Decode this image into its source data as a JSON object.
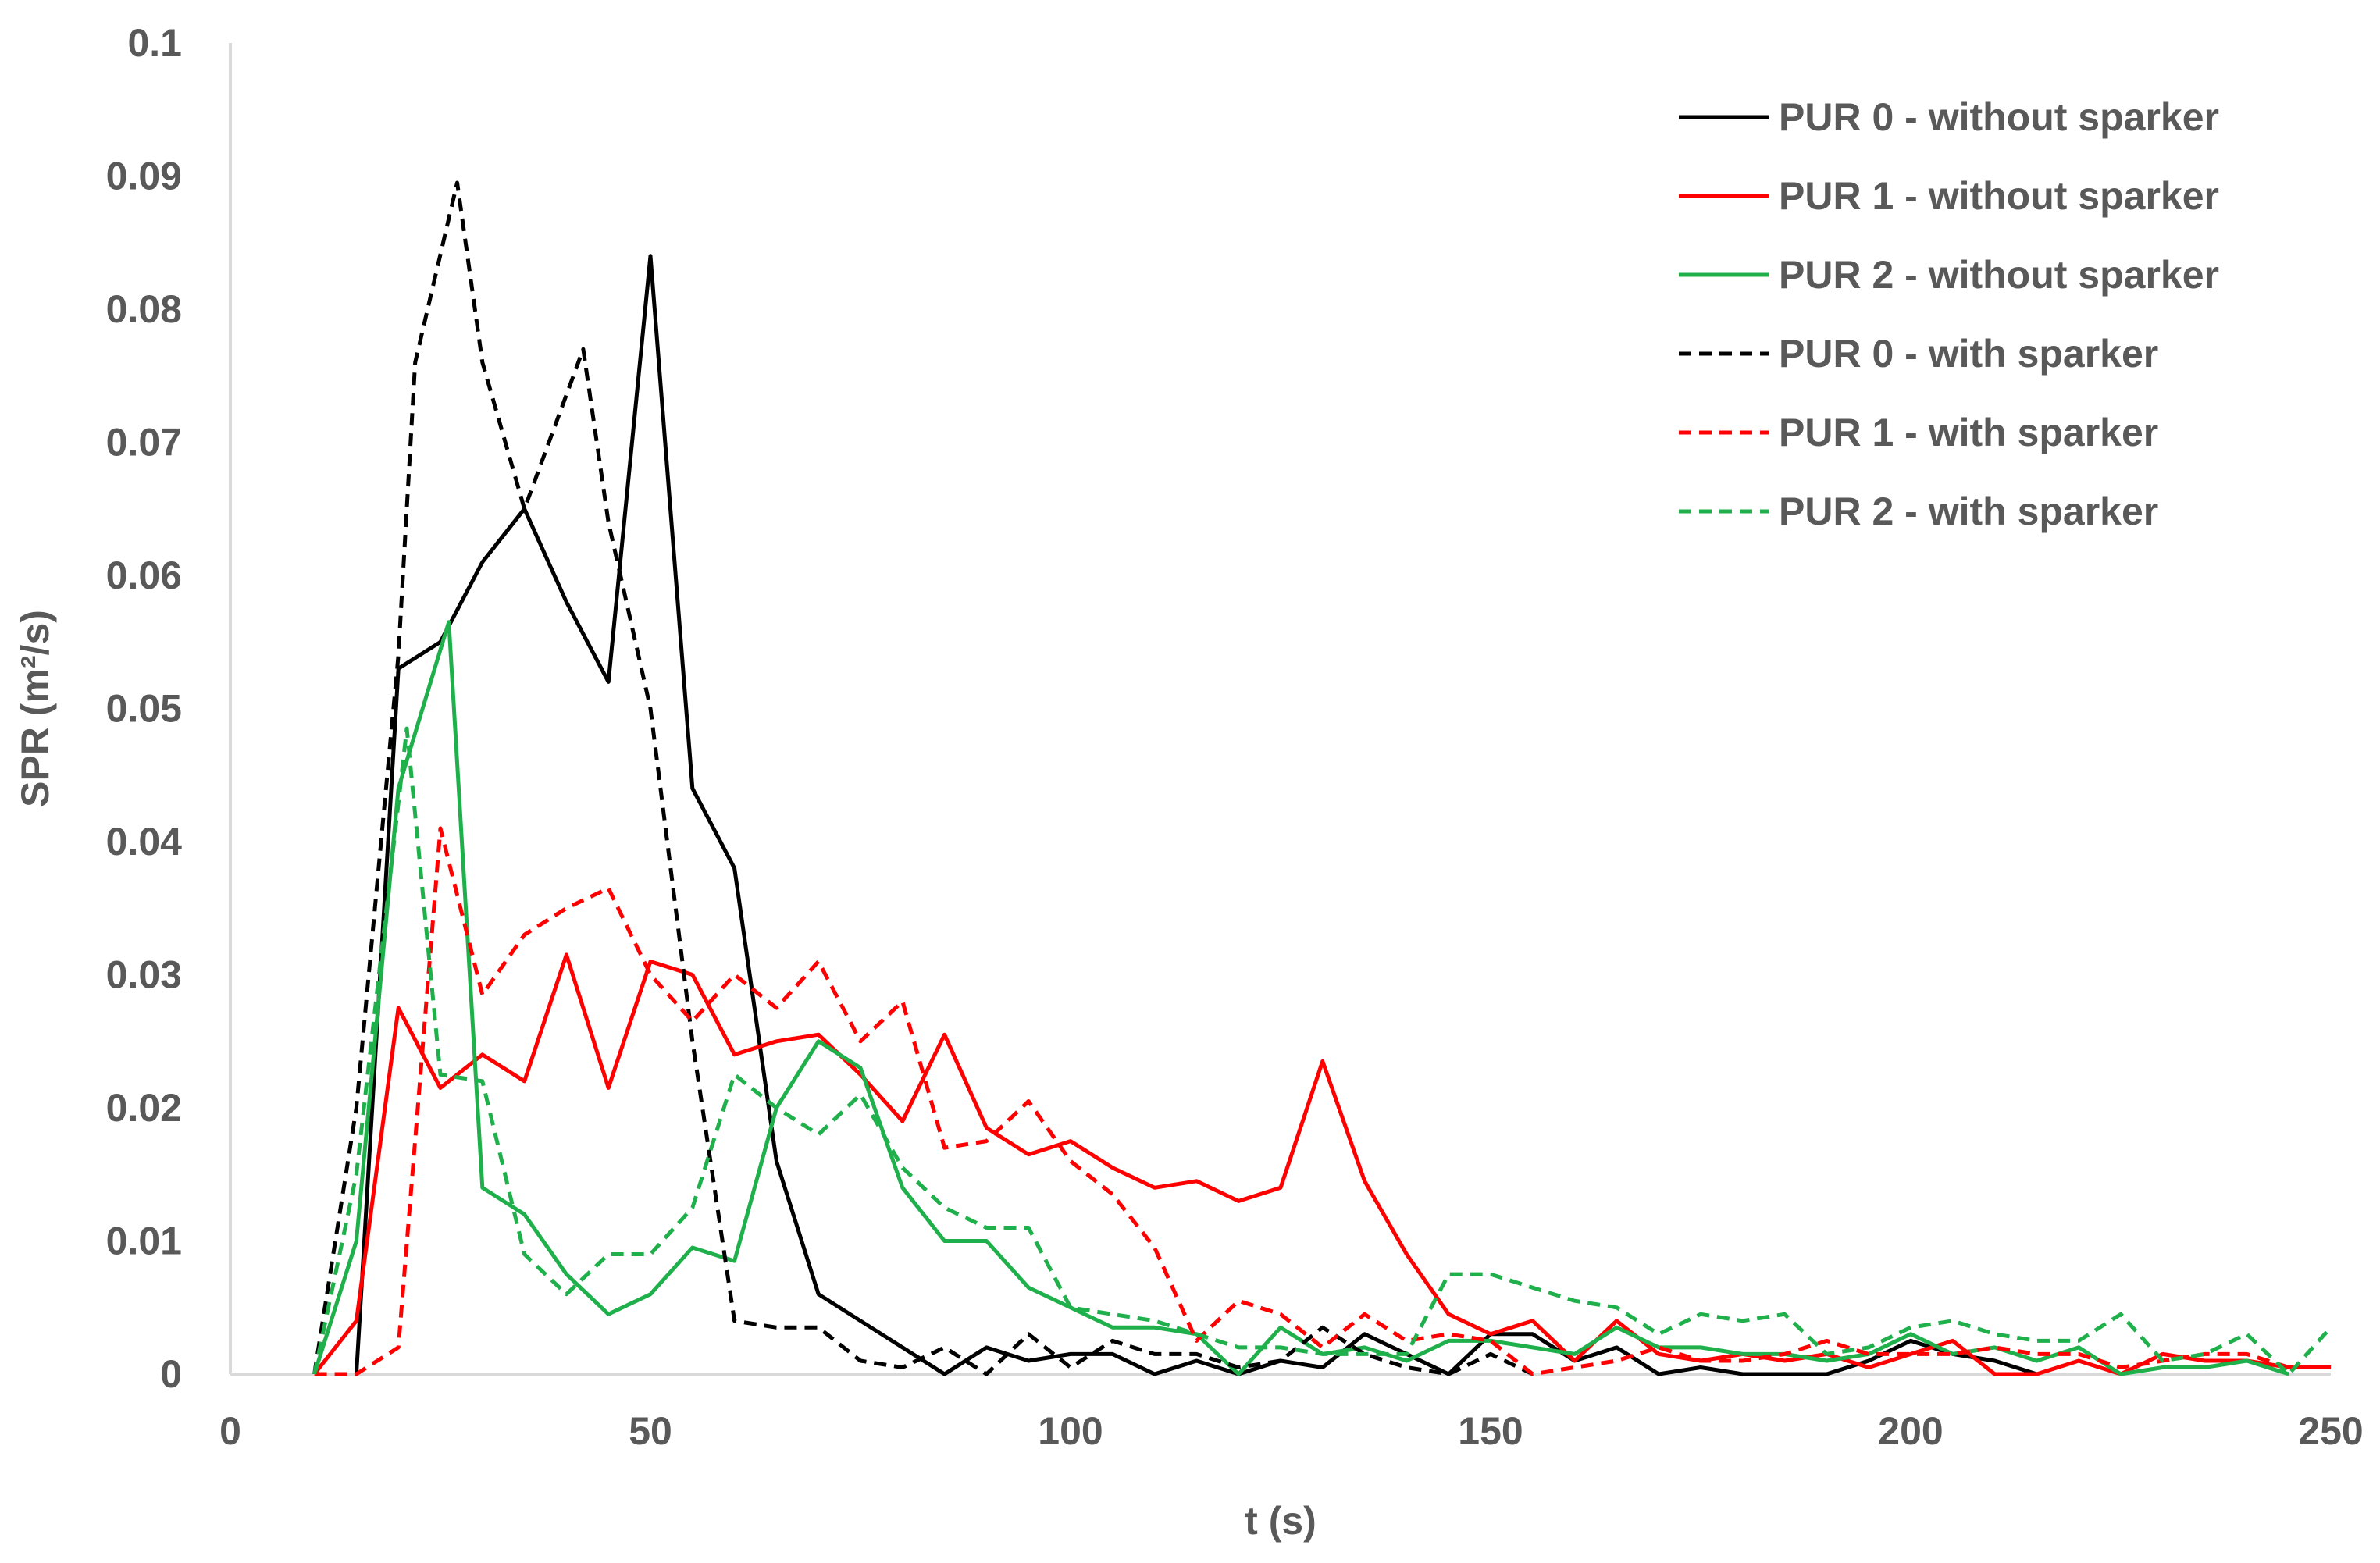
{
  "chart_data": {
    "type": "line",
    "title": "",
    "xlabel": "t (s)",
    "ylabel": "SPR (m²/s)",
    "xlim": [
      0,
      250
    ],
    "ylim": [
      0,
      0.1
    ],
    "x_ticks": [
      "0",
      "50",
      "100",
      "150",
      "200",
      "250"
    ],
    "y_ticks": [
      "0",
      "0.01",
      "0.02",
      "0.03",
      "0.04",
      "0.05",
      "0.06",
      "0.07",
      "0.08",
      "0.09",
      "0.1"
    ],
    "grid": false,
    "legend_position": "top-right",
    "series": [
      {
        "name": "PUR 0 - without sparker",
        "color": "#000000",
        "dash": "solid",
        "points": [
          [
            15,
            0
          ],
          [
            20,
            0.053
          ],
          [
            25,
            0.055
          ],
          [
            30,
            0.061
          ],
          [
            35,
            0.065
          ],
          [
            40,
            0.058
          ],
          [
            45,
            0.052
          ],
          [
            50,
            0.084
          ],
          [
            55,
            0.044
          ],
          [
            60,
            0.038
          ],
          [
            65,
            0.016
          ],
          [
            70,
            0.006
          ],
          [
            75,
            0.004
          ],
          [
            80,
            0.002
          ],
          [
            85,
            0
          ],
          [
            90,
            0.002
          ],
          [
            95,
            0.001
          ],
          [
            100,
            0.0015
          ],
          [
            105,
            0.0015
          ],
          [
            110,
            0
          ],
          [
            115,
            0.001
          ],
          [
            120,
            0
          ],
          [
            125,
            0.001
          ],
          [
            130,
            0.0005
          ],
          [
            135,
            0.003
          ],
          [
            140,
            0.0015
          ],
          [
            145,
            0
          ],
          [
            150,
            0.003
          ],
          [
            155,
            0.003
          ],
          [
            160,
            0.001
          ],
          [
            165,
            0.002
          ],
          [
            170,
            0
          ],
          [
            175,
            0.0005
          ],
          [
            180,
            0
          ],
          [
            185,
            0
          ],
          [
            190,
            0
          ],
          [
            195,
            0.001
          ],
          [
            200,
            0.0025
          ],
          [
            205,
            0.0015
          ],
          [
            210,
            0.001
          ],
          [
            215,
            0
          ]
        ]
      },
      {
        "name": "PUR 1 - without sparker",
        "color": "#ff0000",
        "dash": "solid",
        "points": [
          [
            10,
            0
          ],
          [
            15,
            0.004
          ],
          [
            20,
            0.0275
          ],
          [
            25,
            0.0215
          ],
          [
            30,
            0.024
          ],
          [
            35,
            0.022
          ],
          [
            40,
            0.0315
          ],
          [
            45,
            0.0215
          ],
          [
            50,
            0.031
          ],
          [
            55,
            0.03
          ],
          [
            60,
            0.024
          ],
          [
            65,
            0.025
          ],
          [
            70,
            0.0255
          ],
          [
            75,
            0.0225
          ],
          [
            80,
            0.019
          ],
          [
            85,
            0.0255
          ],
          [
            90,
            0.0185
          ],
          [
            95,
            0.0165
          ],
          [
            100,
            0.0175
          ],
          [
            105,
            0.0155
          ],
          [
            110,
            0.014
          ],
          [
            115,
            0.0145
          ],
          [
            120,
            0.013
          ],
          [
            125,
            0.014
          ],
          [
            130,
            0.0235
          ],
          [
            135,
            0.0145
          ],
          [
            140,
            0.009
          ],
          [
            145,
            0.0045
          ],
          [
            150,
            0.003
          ],
          [
            155,
            0.004
          ],
          [
            160,
            0.001
          ],
          [
            165,
            0.004
          ],
          [
            170,
            0.0015
          ],
          [
            175,
            0.001
          ],
          [
            180,
            0.0015
          ],
          [
            185,
            0.001
          ],
          [
            190,
            0.0015
          ],
          [
            195,
            0.0005
          ],
          [
            200,
            0.0015
          ],
          [
            205,
            0.0025
          ],
          [
            210,
            0
          ],
          [
            215,
            0
          ],
          [
            220,
            0.001
          ],
          [
            225,
            0
          ],
          [
            230,
            0.0015
          ],
          [
            235,
            0.001
          ],
          [
            240,
            0.001
          ],
          [
            245,
            0.0005
          ],
          [
            250,
            0.0005
          ]
        ]
      },
      {
        "name": "PUR 2 - without sparker",
        "color": "#1fb04c",
        "dash": "solid",
        "points": [
          [
            10,
            0
          ],
          [
            15,
            0.01
          ],
          [
            20,
            0.044
          ],
          [
            26,
            0.0565
          ],
          [
            30,
            0.014
          ],
          [
            35,
            0.012
          ],
          [
            40,
            0.0075
          ],
          [
            45,
            0.0045
          ],
          [
            50,
            0.006
          ],
          [
            55,
            0.0095
          ],
          [
            60,
            0.0085
          ],
          [
            65,
            0.02
          ],
          [
            70,
            0.025
          ],
          [
            75,
            0.023
          ],
          [
            80,
            0.014
          ],
          [
            85,
            0.01
          ],
          [
            90,
            0.01
          ],
          [
            95,
            0.0065
          ],
          [
            100,
            0.005
          ],
          [
            105,
            0.0035
          ],
          [
            110,
            0.0035
          ],
          [
            115,
            0.003
          ],
          [
            120,
            0
          ],
          [
            125,
            0.0035
          ],
          [
            130,
            0.0015
          ],
          [
            135,
            0.002
          ],
          [
            140,
            0.001
          ],
          [
            145,
            0.0025
          ],
          [
            150,
            0.0025
          ],
          [
            155,
            0.002
          ],
          [
            160,
            0.0015
          ],
          [
            165,
            0.0035
          ],
          [
            170,
            0.002
          ],
          [
            175,
            0.002
          ],
          [
            180,
            0.0015
          ],
          [
            185,
            0.0015
          ],
          [
            190,
            0.001
          ],
          [
            195,
            0.0015
          ],
          [
            200,
            0.003
          ],
          [
            205,
            0.0015
          ],
          [
            210,
            0.002
          ],
          [
            215,
            0.001
          ],
          [
            220,
            0.002
          ],
          [
            225,
            0
          ],
          [
            230,
            0.0005
          ],
          [
            235,
            0.0005
          ],
          [
            240,
            0.001
          ],
          [
            245,
            0
          ]
        ]
      },
      {
        "name": "PUR 0 - with sparker",
        "color": "#000000",
        "dash": "dashed",
        "points": [
          [
            10,
            0
          ],
          [
            15,
            0.02
          ],
          [
            20,
            0.054
          ],
          [
            22,
            0.076
          ],
          [
            27,
            0.0895
          ],
          [
            30,
            0.076
          ],
          [
            35,
            0.065
          ],
          [
            42,
            0.077
          ],
          [
            45,
            0.064
          ],
          [
            50,
            0.05
          ],
          [
            55,
            0.025
          ],
          [
            60,
            0.004
          ],
          [
            65,
            0.0035
          ],
          [
            70,
            0.0035
          ],
          [
            75,
            0.001
          ],
          [
            80,
            0.0005
          ],
          [
            85,
            0.002
          ],
          [
            90,
            0
          ],
          [
            95,
            0.003
          ],
          [
            100,
            0.0005
          ],
          [
            105,
            0.0025
          ],
          [
            110,
            0.0015
          ],
          [
            115,
            0.0015
          ],
          [
            120,
            0.0005
          ],
          [
            125,
            0.001
          ],
          [
            130,
            0.0035
          ],
          [
            135,
            0.0015
          ],
          [
            140,
            0.0005
          ],
          [
            145,
            0
          ],
          [
            150,
            0.0015
          ],
          [
            155,
            0
          ]
        ]
      },
      {
        "name": "PUR 1 - with sparker",
        "color": "#ff0000",
        "dash": "dashed",
        "points": [
          [
            10,
            0
          ],
          [
            15,
            0
          ],
          [
            20,
            0.002
          ],
          [
            25,
            0.041
          ],
          [
            30,
            0.0285
          ],
          [
            35,
            0.033
          ],
          [
            40,
            0.035
          ],
          [
            45,
            0.0365
          ],
          [
            50,
            0.03
          ],
          [
            55,
            0.0265
          ],
          [
            60,
            0.03
          ],
          [
            65,
            0.0275
          ],
          [
            70,
            0.031
          ],
          [
            75,
            0.025
          ],
          [
            80,
            0.028
          ],
          [
            85,
            0.017
          ],
          [
            90,
            0.0175
          ],
          [
            95,
            0.0205
          ],
          [
            100,
            0.016
          ],
          [
            105,
            0.0135
          ],
          [
            110,
            0.0095
          ],
          [
            115,
            0.0025
          ],
          [
            120,
            0.0055
          ],
          [
            125,
            0.0045
          ],
          [
            130,
            0.002
          ],
          [
            135,
            0.0045
          ],
          [
            140,
            0.0025
          ],
          [
            145,
            0.003
          ],
          [
            150,
            0.0025
          ],
          [
            155,
            0
          ],
          [
            160,
            0.0005
          ],
          [
            165,
            0.001
          ],
          [
            170,
            0.002
          ],
          [
            175,
            0.001
          ],
          [
            180,
            0.001
          ],
          [
            185,
            0.0015
          ],
          [
            190,
            0.0025
          ],
          [
            195,
            0.0015
          ],
          [
            200,
            0.0015
          ],
          [
            205,
            0.0015
          ],
          [
            210,
            0.002
          ],
          [
            215,
            0.0015
          ],
          [
            220,
            0.0015
          ],
          [
            225,
            0.0005
          ],
          [
            230,
            0.001
          ],
          [
            235,
            0.0015
          ],
          [
            240,
            0.0015
          ],
          [
            245,
            0.0005
          ],
          [
            250,
            0.0005
          ]
        ]
      },
      {
        "name": "PUR 2 - with sparker",
        "color": "#1fb04c",
        "dash": "dashed",
        "points": [
          [
            10,
            0
          ],
          [
            15,
            0.015
          ],
          [
            21,
            0.0485
          ],
          [
            25,
            0.0225
          ],
          [
            30,
            0.022
          ],
          [
            35,
            0.009
          ],
          [
            40,
            0.006
          ],
          [
            45,
            0.009
          ],
          [
            50,
            0.009
          ],
          [
            55,
            0.0125
          ],
          [
            60,
            0.0225
          ],
          [
            65,
            0.02
          ],
          [
            70,
            0.018
          ],
          [
            75,
            0.021
          ],
          [
            80,
            0.0155
          ],
          [
            85,
            0.0125
          ],
          [
            90,
            0.011
          ],
          [
            95,
            0.011
          ],
          [
            100,
            0.005
          ],
          [
            105,
            0.0045
          ],
          [
            110,
            0.004
          ],
          [
            115,
            0.003
          ],
          [
            120,
            0.002
          ],
          [
            125,
            0.002
          ],
          [
            130,
            0.0015
          ],
          [
            135,
            0.0015
          ],
          [
            140,
            0.0015
          ],
          [
            145,
            0.0075
          ],
          [
            150,
            0.0075
          ],
          [
            155,
            0.0065
          ],
          [
            160,
            0.0055
          ],
          [
            165,
            0.005
          ],
          [
            170,
            0.003
          ],
          [
            175,
            0.0045
          ],
          [
            180,
            0.004
          ],
          [
            185,
            0.0045
          ],
          [
            190,
            0.0015
          ],
          [
            195,
            0.002
          ],
          [
            200,
            0.0035
          ],
          [
            205,
            0.004
          ],
          [
            210,
            0.003
          ],
          [
            215,
            0.0025
          ],
          [
            220,
            0.0025
          ],
          [
            225,
            0.0045
          ],
          [
            230,
            0.001
          ],
          [
            235,
            0.0015
          ],
          [
            240,
            0.003
          ],
          [
            245,
            0
          ],
          [
            250,
            0.0035
          ]
        ]
      }
    ]
  }
}
